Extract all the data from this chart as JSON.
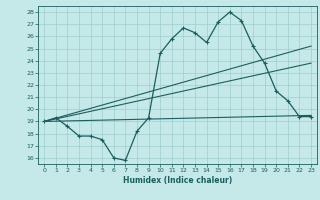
{
  "xlabel": "Humidex (Indice chaleur)",
  "ylabel": "",
  "bg_color": "#c5e8e8",
  "grid_color": "#9fcece",
  "line_color": "#1a5f5f",
  "xlim": [
    -0.5,
    23.5
  ],
  "ylim": [
    15.5,
    28.5
  ],
  "xticks": [
    0,
    1,
    2,
    3,
    4,
    5,
    6,
    7,
    8,
    9,
    10,
    11,
    12,
    13,
    14,
    15,
    16,
    17,
    18,
    19,
    20,
    21,
    22,
    23
  ],
  "yticks": [
    16,
    17,
    18,
    19,
    20,
    21,
    22,
    23,
    24,
    25,
    26,
    27,
    28
  ],
  "main_x": [
    0,
    1,
    2,
    3,
    4,
    5,
    6,
    7,
    8,
    9,
    10,
    11,
    12,
    13,
    14,
    15,
    16,
    17,
    18,
    19,
    20,
    21,
    22,
    23
  ],
  "main_y": [
    19.0,
    19.3,
    18.6,
    17.8,
    17.8,
    17.5,
    16.0,
    15.8,
    18.2,
    19.3,
    24.6,
    25.8,
    26.7,
    26.3,
    25.5,
    27.2,
    28.0,
    27.3,
    25.2,
    23.8,
    21.5,
    20.7,
    19.4,
    19.4
  ],
  "line1_x": [
    0,
    23
  ],
  "line1_y": [
    19.0,
    25.2
  ],
  "line2_x": [
    0,
    23
  ],
  "line2_y": [
    19.0,
    23.8
  ],
  "line3_x": [
    0,
    23
  ],
  "line3_y": [
    19.0,
    19.5
  ]
}
